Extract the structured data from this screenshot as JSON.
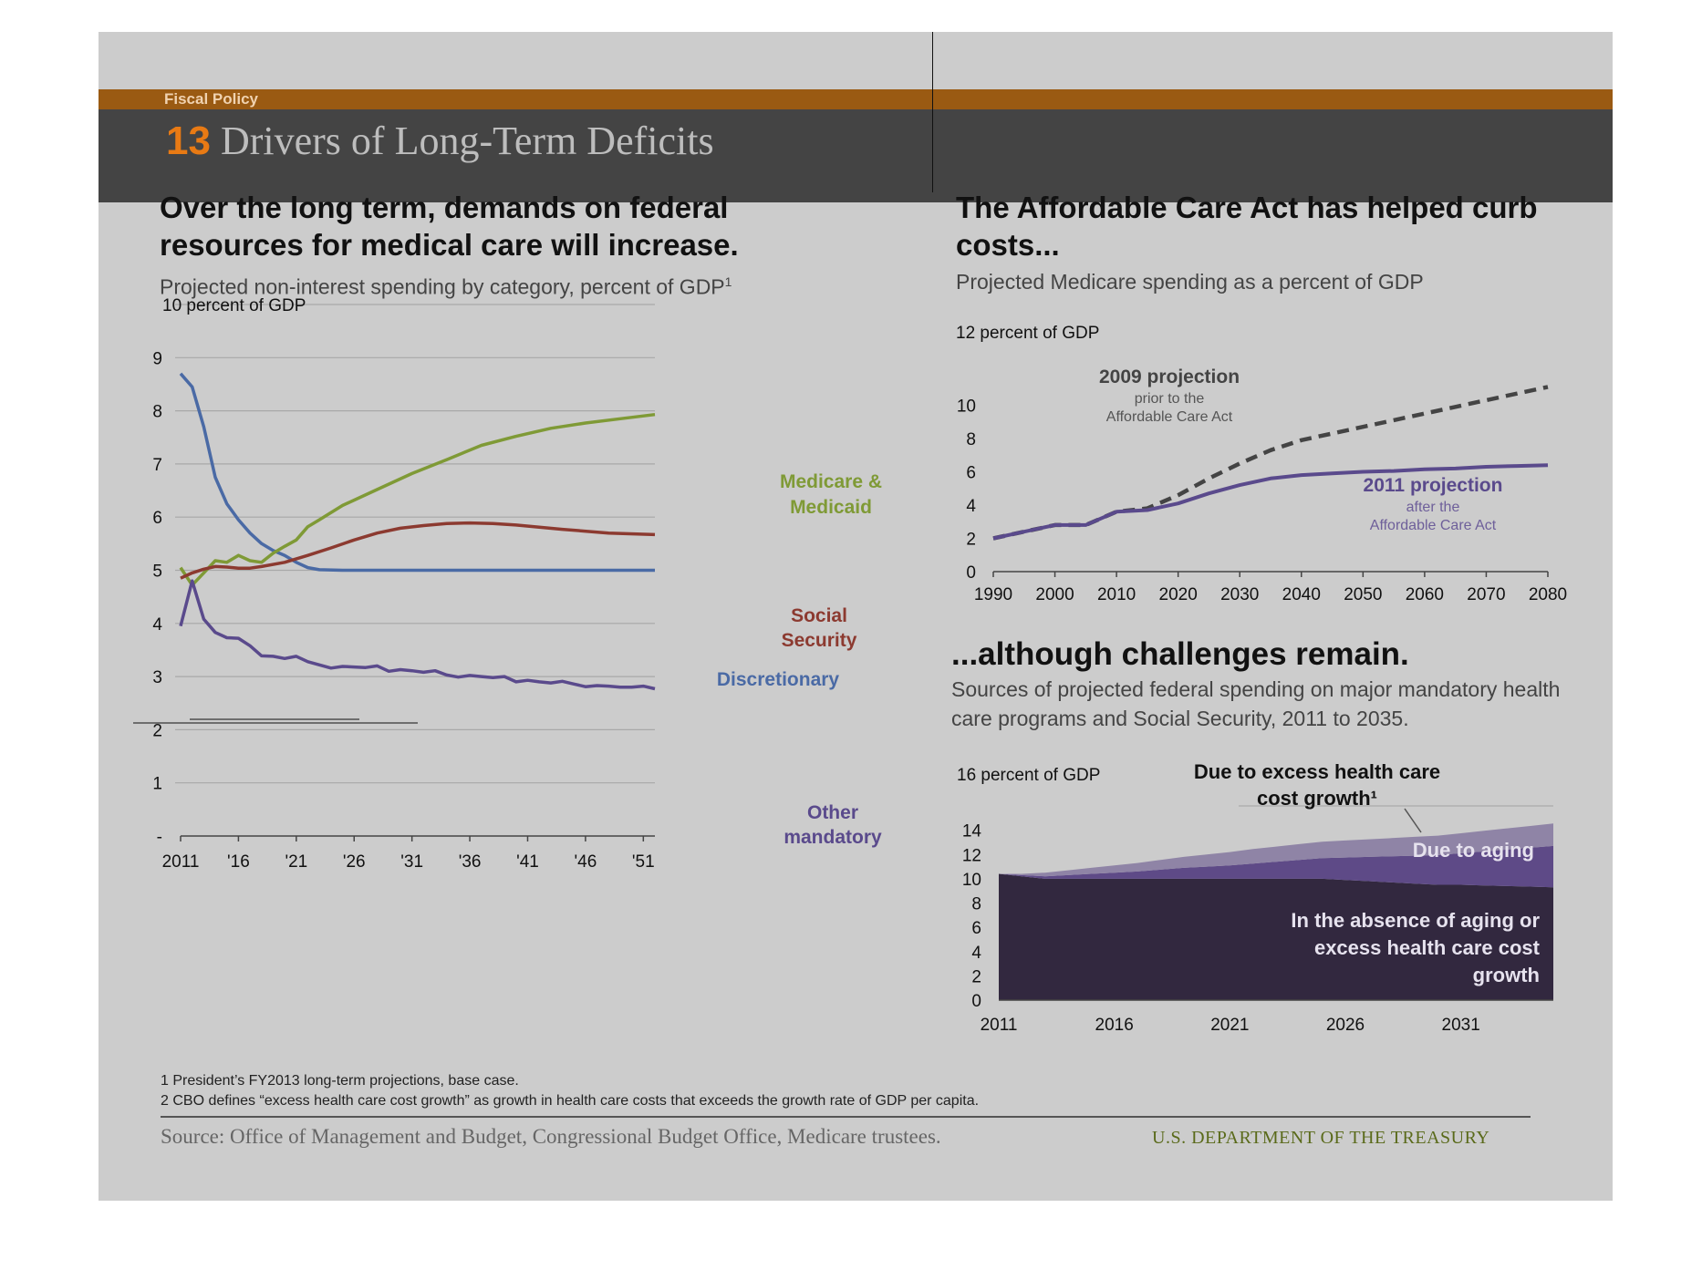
{
  "header": {
    "section_label": "Fiscal Policy",
    "slide_number": "13",
    "slide_title": "Drivers of Long-Term Deficits"
  },
  "left": {
    "headline": "Over the long term, demands on federal resources for medical care will increase.",
    "subtitle": "Projected non-interest spending by category, percent of GDP",
    "subtitle_sup": "1"
  },
  "top_right": {
    "headline": "The Affordable Care Act has helped curb costs...",
    "subtitle": "Projected Medicare spending as a percent of GDP"
  },
  "bottom_right": {
    "headline": "...although challenges remain.",
    "subtitle": "Sources of projected federal spending on major mandatory health care programs and Social Security, 2011 to 2035."
  },
  "footnotes": [
    "1 President’s FY2013 long-term projections, base case.",
    "2 CBO defines “excess health care cost growth” as growth in health care costs that exceeds the growth rate of GDP per capita."
  ],
  "footer": {
    "source": "Source: Office of Management and Budget, Congressional Budget Office, Medicare trustees.",
    "agency": "U.S. DEPARTMENT OF THE TREASURY"
  },
  "chart_data": [
    {
      "type": "line",
      "title": "Projected non-interest spending by category, percent of GDP",
      "ylabel": "10 percent of GDP",
      "ylim": [
        0,
        10
      ],
      "y_ticks": [
        "-",
        "1",
        "2",
        "3",
        "4",
        "5",
        "6",
        "7",
        "8",
        "9"
      ],
      "xlim": [
        2011,
        2052
      ],
      "x_ticks": [
        {
          "value": 2011,
          "label": "2011"
        },
        {
          "value": 2016,
          "label": "'16"
        },
        {
          "value": 2021,
          "label": "'21"
        },
        {
          "value": 2026,
          "label": "'26"
        },
        {
          "value": 2031,
          "label": "'31"
        },
        {
          "value": 2036,
          "label": "'36"
        },
        {
          "value": 2041,
          "label": "'41"
        },
        {
          "value": 2046,
          "label": "'46"
        },
        {
          "value": 2051,
          "label": "'51"
        }
      ],
      "grid": true,
      "series": [
        {
          "name": "Discretionary",
          "label_lines": [
            "Discretionary"
          ],
          "color": "#4a6aa5",
          "x": [
            2011,
            2012,
            2013,
            2014,
            2015,
            2016,
            2017,
            2018,
            2019,
            2020,
            2021,
            2022,
            2023,
            2025,
            2030,
            2035,
            2040,
            2045,
            2052
          ],
          "y": [
            8.7,
            8.45,
            7.7,
            6.75,
            6.25,
            5.95,
            5.7,
            5.5,
            5.37,
            5.28,
            5.15,
            5.05,
            5.01,
            5.0,
            5.0,
            5.0,
            5.0,
            5.0,
            5.0
          ]
        },
        {
          "name": "Medicare & Medicaid",
          "label_lines": [
            "Medicare &",
            "Medicaid"
          ],
          "color": "#7f9a36",
          "x": [
            2011,
            2012,
            2013,
            2014,
            2015,
            2016,
            2017,
            2018,
            2019,
            2020,
            2021,
            2022,
            2023,
            2025,
            2028,
            2031,
            2034,
            2037,
            2040,
            2043,
            2046,
            2049,
            2052
          ],
          "y": [
            5.05,
            4.72,
            4.95,
            5.18,
            5.15,
            5.28,
            5.18,
            5.15,
            5.32,
            5.45,
            5.57,
            5.82,
            5.95,
            6.22,
            6.52,
            6.82,
            7.08,
            7.35,
            7.52,
            7.67,
            7.77,
            7.85,
            7.93
          ]
        },
        {
          "name": "Social Security",
          "label_lines": [
            "Social",
            "Security"
          ],
          "color": "#8c3a30",
          "x": [
            2011,
            2012,
            2013,
            2014,
            2015,
            2016,
            2017,
            2018,
            2020,
            2022,
            2024,
            2026,
            2028,
            2030,
            2032,
            2034,
            2036,
            2038,
            2040,
            2044,
            2048,
            2052
          ],
          "y": [
            4.85,
            4.95,
            5.02,
            5.07,
            5.06,
            5.04,
            5.04,
            5.07,
            5.15,
            5.28,
            5.42,
            5.57,
            5.7,
            5.79,
            5.84,
            5.88,
            5.89,
            5.88,
            5.85,
            5.77,
            5.7,
            5.67
          ]
        },
        {
          "name": "Other mandatory",
          "label_lines": [
            "Other",
            "mandatory"
          ],
          "color": "#5a4a8c",
          "x": [
            2011,
            2012,
            2013,
            2014,
            2015,
            2016,
            2017,
            2018,
            2019,
            2020,
            2021,
            2022,
            2023,
            2024,
            2025,
            2026,
            2027,
            2028,
            2029,
            2030,
            2031,
            2032,
            2033,
            2034,
            2035,
            2036,
            2037,
            2038,
            2039,
            2040,
            2041,
            2042,
            2043,
            2044,
            2045,
            2046,
            2047,
            2048,
            2049,
            2050,
            2051,
            2052
          ],
          "y": [
            3.95,
            4.8,
            4.08,
            3.83,
            3.73,
            3.72,
            3.58,
            3.39,
            3.38,
            3.34,
            3.38,
            3.28,
            3.22,
            3.16,
            3.19,
            3.18,
            3.17,
            3.2,
            3.1,
            3.13,
            3.11,
            3.08,
            3.11,
            3.03,
            2.99,
            3.02,
            3.0,
            2.98,
            3.0,
            2.9,
            2.93,
            2.9,
            2.88,
            2.91,
            2.86,
            2.81,
            2.83,
            2.82,
            2.8,
            2.8,
            2.82,
            2.77
          ]
        }
      ]
    },
    {
      "type": "line",
      "title": "Projected Medicare spending as a percent of GDP",
      "ylabel": "12 percent of GDP",
      "ylim": [
        0,
        12
      ],
      "y_ticks": [
        0,
        2,
        4,
        6,
        8,
        10
      ],
      "xlim": [
        1990,
        2080
      ],
      "x_ticks": [
        1990,
        2000,
        2010,
        2020,
        2030,
        2040,
        2050,
        2060,
        2070,
        2080
      ],
      "grid": false,
      "series": [
        {
          "name": "2009 projection",
          "annotation": [
            "prior to the",
            "Affordable Care Act"
          ],
          "color": "#444444",
          "dashed": true,
          "x": [
            1990,
            1995,
            2000,
            2005,
            2010,
            2015,
            2020,
            2025,
            2030,
            2035,
            2040,
            2045,
            2050,
            2055,
            2060,
            2065,
            2070,
            2075,
            2080
          ],
          "y": [
            2.0,
            2.4,
            2.8,
            2.8,
            3.6,
            3.8,
            4.6,
            5.6,
            6.5,
            7.3,
            7.9,
            8.3,
            8.7,
            9.1,
            9.5,
            9.9,
            10.3,
            10.7,
            11.1
          ]
        },
        {
          "name": "2011 projection",
          "annotation": [
            "after the",
            "Affordable Care Act"
          ],
          "color": "#5a4a8c",
          "dashed": false,
          "x": [
            1990,
            1995,
            2000,
            2005,
            2010,
            2015,
            2020,
            2025,
            2030,
            2035,
            2040,
            2045,
            2050,
            2055,
            2060,
            2065,
            2070,
            2075,
            2080
          ],
          "y": [
            2.0,
            2.4,
            2.8,
            2.8,
            3.6,
            3.7,
            4.1,
            4.7,
            5.2,
            5.6,
            5.8,
            5.9,
            6.0,
            6.05,
            6.15,
            6.2,
            6.3,
            6.35,
            6.4
          ]
        }
      ]
    },
    {
      "type": "area",
      "title": "Sources of projected federal spending on major mandatory health care programs and Social Security, 2011 to 2035.",
      "ylabel": "16 percent of GDP",
      "ylim": [
        0,
        16
      ],
      "y_ticks": [
        0,
        2,
        4,
        6,
        8,
        10,
        12,
        14
      ],
      "xlim": [
        2011,
        2035
      ],
      "x_ticks": [
        2011,
        2016,
        2021,
        2026,
        2031
      ],
      "x": [
        2011,
        2012,
        2013,
        2014,
        2015,
        2016,
        2017,
        2018,
        2019,
        2020,
        2021,
        2022,
        2023,
        2024,
        2025,
        2026,
        2027,
        2028,
        2029,
        2030,
        2031,
        2032,
        2033,
        2034,
        2035
      ],
      "series": [
        {
          "name": "In the absence of aging or excess health care cost growth",
          "label_lines": [
            "In the absence of aging or",
            "excess health care cost",
            "growth"
          ],
          "color": "#32283f",
          "values": [
            10.4,
            10.2,
            10.0,
            10.0,
            10.0,
            10.0,
            10.0,
            10.0,
            10.0,
            10.0,
            10.0,
            10.0,
            10.0,
            10.0,
            10.0,
            9.9,
            9.8,
            9.7,
            9.6,
            9.5,
            9.5,
            9.45,
            9.4,
            9.35,
            9.3
          ]
        },
        {
          "name": "Due to aging",
          "label_lines": [
            "Due to aging"
          ],
          "color": "#5e4a87",
          "values": [
            0.0,
            0.1,
            0.2,
            0.3,
            0.4,
            0.5,
            0.6,
            0.75,
            0.9,
            1.0,
            1.1,
            1.25,
            1.4,
            1.55,
            1.7,
            1.85,
            2.0,
            2.15,
            2.3,
            2.45,
            2.6,
            2.8,
            3.0,
            3.2,
            3.4
          ]
        },
        {
          "name": "Due to excess health care cost growth",
          "label_lines": [
            "Due to excess  health care",
            "cost growth¹"
          ],
          "color": "#8f84a6",
          "values": [
            0.0,
            0.1,
            0.3,
            0.4,
            0.5,
            0.6,
            0.7,
            0.8,
            0.9,
            1.0,
            1.1,
            1.2,
            1.25,
            1.3,
            1.35,
            1.4,
            1.45,
            1.5,
            1.55,
            1.6,
            1.65,
            1.7,
            1.75,
            1.8,
            1.85
          ]
        }
      ]
    }
  ]
}
